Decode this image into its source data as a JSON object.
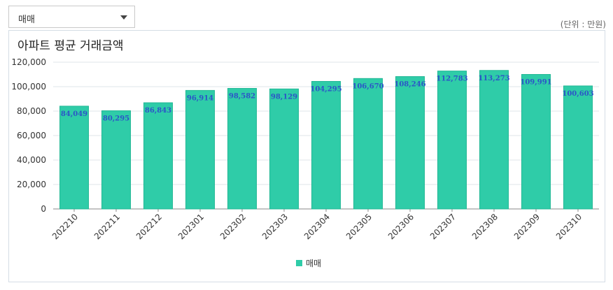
{
  "select": {
    "value": "매매",
    "icon": "chevron-down-icon"
  },
  "unit_label": "(단위 : 만원)",
  "chart_data": {
    "type": "bar",
    "title": "아파트 평균 거래금액",
    "categories": [
      "202210",
      "202211",
      "202212",
      "202301",
      "202302",
      "202303",
      "202304",
      "202305",
      "202306",
      "202307",
      "202308",
      "202309",
      "202310"
    ],
    "series": [
      {
        "name": "매매",
        "values": [
          84049,
          80295,
          86843,
          96914,
          98582,
          98129,
          104295,
          106670,
          108246,
          112783,
          113273,
          109991,
          100603
        ],
        "labels": [
          "84,049",
          "80,295",
          "86,843",
          "96,914",
          "98,582",
          "98,129",
          "104,295",
          "106,670",
          "108,246",
          "112,783",
          "113,273",
          "109,991",
          "100,603"
        ]
      }
    ],
    "ylim": [
      0,
      120000
    ],
    "yticks": [
      "0",
      "20,000",
      "40,000",
      "60,000",
      "80,000",
      "100,000",
      "120,000"
    ],
    "grid": true,
    "legend_position": "bottom",
    "colors": {
      "bar": "#2fcca8",
      "bar_stroke": "#22b895",
      "data_label": "#2c55c7",
      "grid": "#dfe4ea",
      "axis": "#888888"
    }
  }
}
